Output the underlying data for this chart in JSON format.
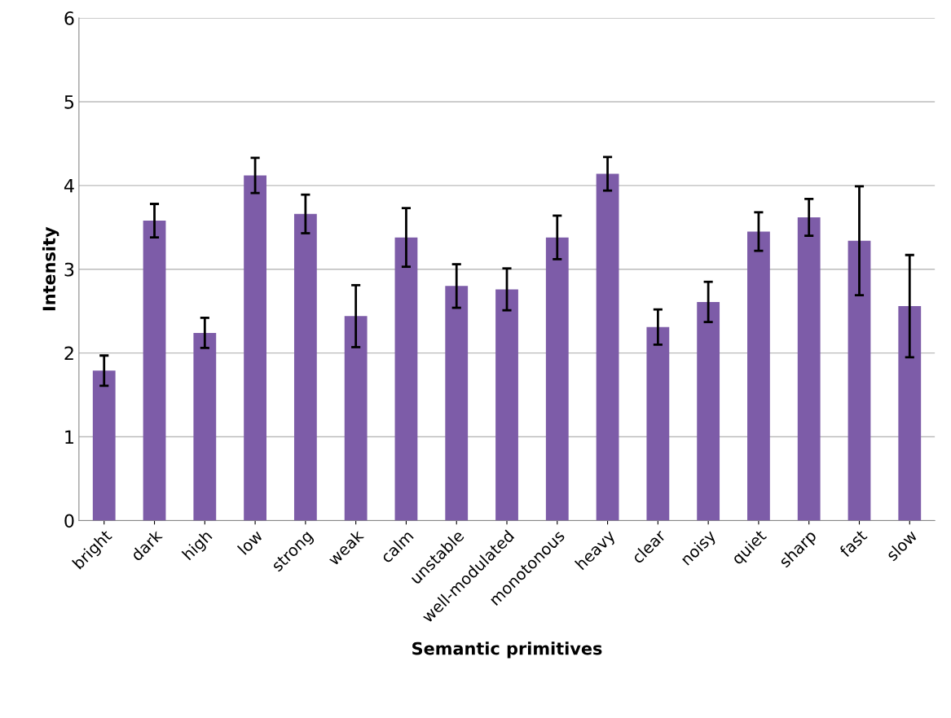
{
  "chart_data": {
    "type": "bar",
    "xlabel": "Semantic primitives",
    "ylabel": "Intensity",
    "categories": [
      "bright",
      "dark",
      "high",
      "low",
      "strong",
      "weak",
      "calm",
      "unstable",
      "well-modulated",
      "monotonous",
      "heavy",
      "clear",
      "noisy",
      "quiet",
      "sharp",
      "fast",
      "slow"
    ],
    "values": [
      1.79,
      3.58,
      2.24,
      4.12,
      3.66,
      2.44,
      3.38,
      2.8,
      2.76,
      3.38,
      4.14,
      2.31,
      2.61,
      3.45,
      3.62,
      3.34,
      2.56
    ],
    "errors": [
      0.18,
      0.2,
      0.18,
      0.21,
      0.23,
      0.37,
      0.35,
      0.26,
      0.25,
      0.26,
      0.2,
      0.21,
      0.24,
      0.23,
      0.22,
      0.65,
      0.61
    ],
    "color": "#7d5ca8",
    "ylim": [
      0,
      6
    ],
    "yticks": [
      0,
      1,
      2,
      3,
      4,
      5,
      6
    ],
    "grid": "y"
  }
}
